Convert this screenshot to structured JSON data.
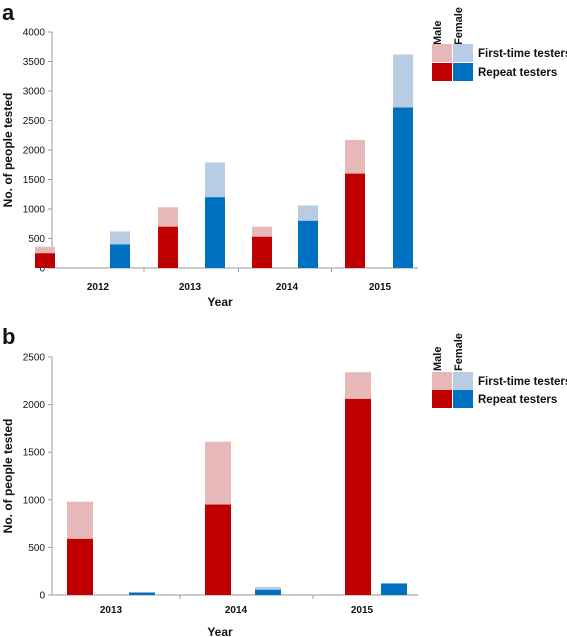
{
  "chart_data": [
    {
      "panel": "a",
      "type": "bar",
      "stacked": true,
      "xlabel": "Year",
      "ylabel": "No. of people tested",
      "ylim": [
        0,
        4000
      ],
      "yticks": [
        0,
        500,
        1000,
        1500,
        2000,
        2500,
        3000,
        3500,
        4000
      ],
      "categories": [
        "2012",
        "2013",
        "2014",
        "2015"
      ],
      "groups": [
        "Male",
        "Female"
      ],
      "series": [
        {
          "name": "First-time testers",
          "Male": [
            360,
            1030,
            700,
            2170
          ],
          "Female": [
            620,
            1790,
            1060,
            3620
          ]
        },
        {
          "name": "Repeat testers",
          "Male": [
            250,
            700,
            530,
            1600
          ],
          "Female": [
            400,
            1200,
            800,
            2720
          ]
        }
      ]
    },
    {
      "panel": "b",
      "type": "bar",
      "stacked": true,
      "xlabel": "Year",
      "ylabel": "No. of people tested",
      "ylim": [
        0,
        2500
      ],
      "yticks": [
        0,
        500,
        1000,
        1500,
        2000,
        2500
      ],
      "categories": [
        "2013",
        "2014",
        "2015"
      ],
      "groups": [
        "Male",
        "Female"
      ],
      "series": [
        {
          "name": "First-time testers",
          "Male": [
            980,
            1610,
            2340
          ],
          "Female": [
            30,
            85,
            125
          ]
        },
        {
          "name": "Repeat testers",
          "Male": [
            590,
            950,
            2060
          ],
          "Female": [
            25,
            55,
            120
          ]
        }
      ]
    }
  ],
  "legend": {
    "male": "Male",
    "female": "Female",
    "first_time": "First-time testers",
    "repeat": "Repeat testers"
  },
  "colors": {
    "male_first": "#e6b8b8",
    "male_repeat": "#c00000",
    "female_first": "#b8cce4",
    "female_repeat": "#0070c0",
    "axis": "#999999"
  }
}
